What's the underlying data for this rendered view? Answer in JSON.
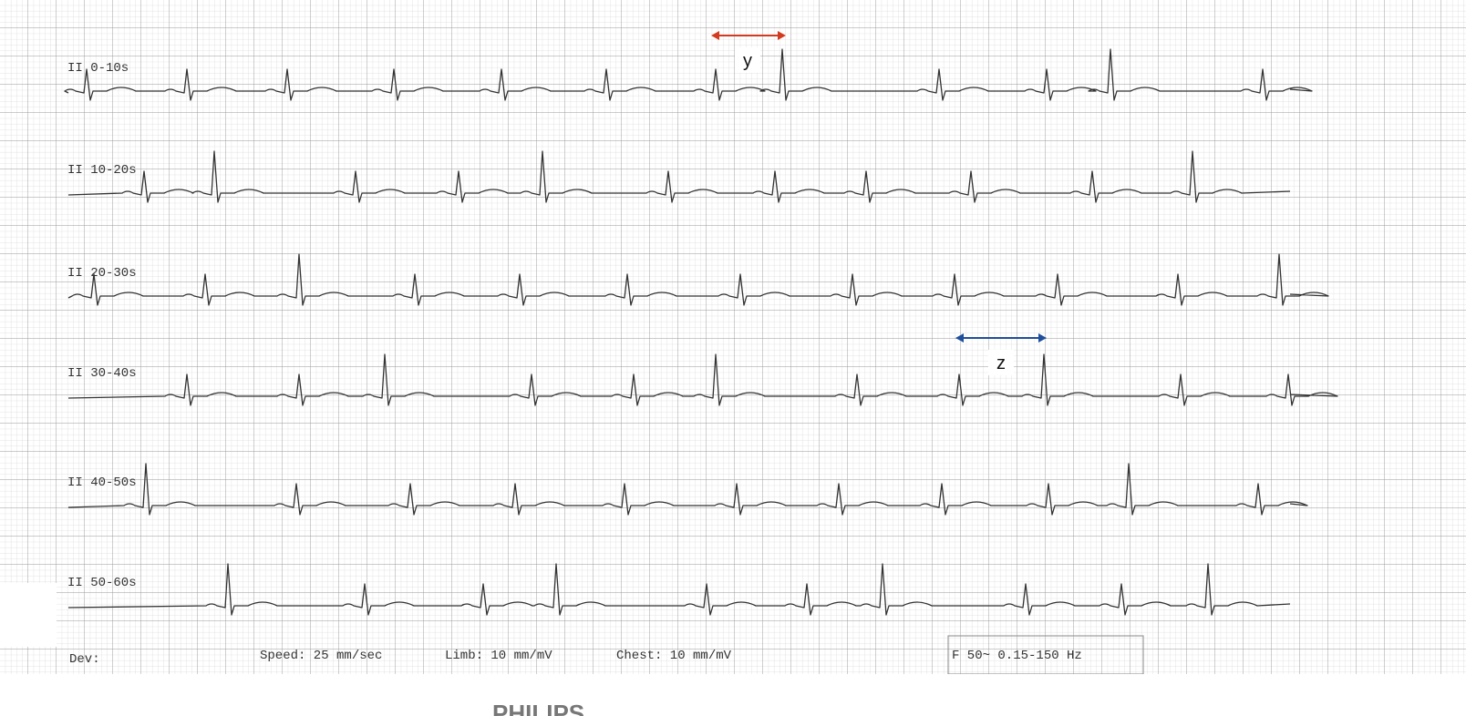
{
  "rows": [
    {
      "label": "II 0-10s"
    },
    {
      "label": "II 10-20s"
    },
    {
      "label": "II 20-30s"
    },
    {
      "label": "II 30-40s"
    },
    {
      "label": "II 40-50s"
    },
    {
      "label": "II 50-60s"
    }
  ],
  "annotations": [
    {
      "label": "y"
    },
    {
      "label": "z"
    }
  ],
  "footer": {
    "device": "Dev:",
    "speed": "Speed: 25 mm/sec",
    "limb": "Limb: 10 mm/mV",
    "chest": "Chest: 10 mm/mV",
    "filter": "F 50~ 0.15-150 Hz",
    "brand": "PHILIPS"
  }
}
